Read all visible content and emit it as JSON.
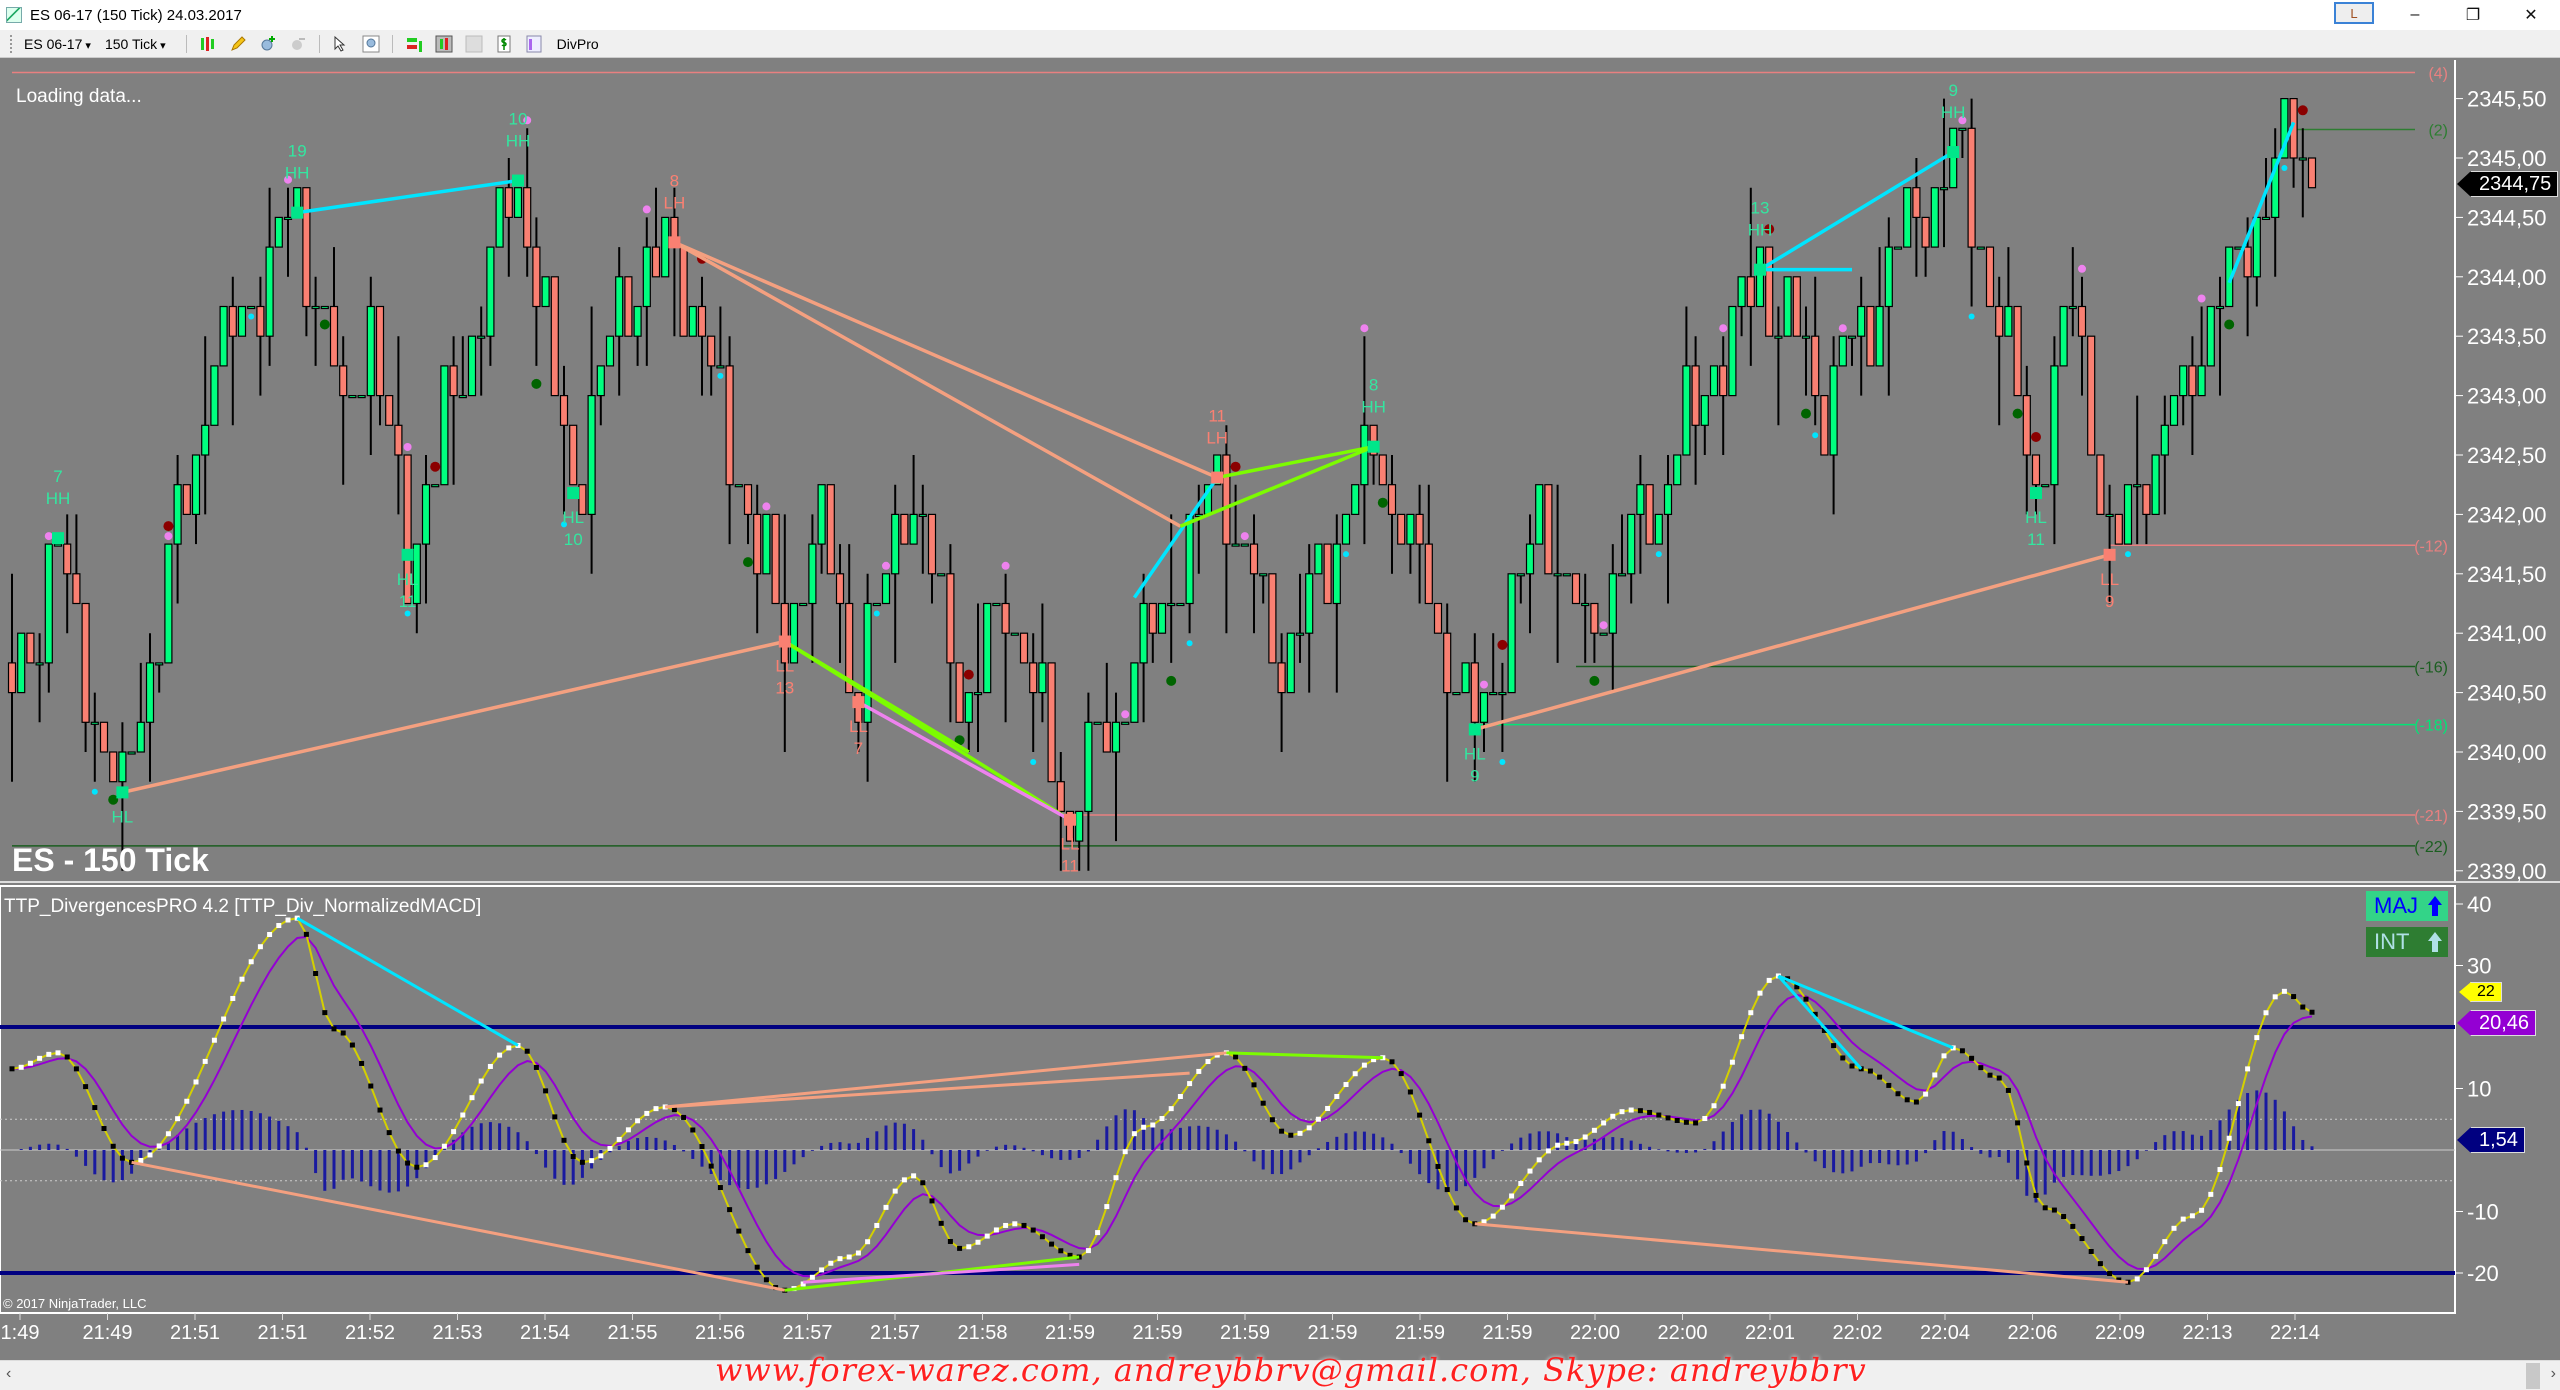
{
  "window": {
    "title": "ES 06-17 (150 Tick)  24.03.2017",
    "lbutton": "L",
    "minimize": "–",
    "restore": "❐",
    "close": "✕"
  },
  "toolbar": {
    "instrument": "ES 06-17",
    "interval": "150 Tick",
    "divpro": "DivPro",
    "icons": [
      "bars-type-icon",
      "pencil-draw-icon",
      "zoom-in-icon",
      "zoom-out-icon",
      "pointer-icon",
      "magnify-icon",
      "data-series-icon",
      "indicators-icon",
      "strategies-icon",
      "dollar-icon",
      "properties-icon"
    ]
  },
  "price_pane": {
    "status": "Loading data...",
    "instrument_label": "ES - 150 Tick",
    "last_price": "2344,75",
    "axis_ticks": [
      "2345,50",
      "2345,00",
      "2344,50",
      "2344,00",
      "2343,50",
      "2343,00",
      "2342,50",
      "2342,00",
      "2341,50",
      "2341,00",
      "2340,50",
      "2340,00",
      "2339,50",
      "2339,00"
    ],
    "colors": {
      "up": "#00ff7f",
      "down": "#fa8072",
      "bullish_label": "#33e6a0",
      "bearish_label": "#fa8072",
      "cyan_line": "#00e5ff",
      "green_line": "#7cfc00",
      "pink_line": "#ee82ee"
    },
    "swings": [
      {
        "bar": 0,
        "price": 2340.42
      },
      {
        "bar": 5,
        "price": 2341.8,
        "label": "HH",
        "num": "7",
        "side": "high"
      },
      {
        "bar": 8,
        "price": 2340.5
      },
      {
        "bar": 12,
        "price": 2339.66,
        "label": "HL",
        "num": "",
        "side": "low"
      },
      {
        "bar": 22,
        "price": 2343.3
      },
      {
        "bar": 31,
        "price": 2344.54,
        "label": "HH",
        "num": "19",
        "side": "high"
      },
      {
        "bar": 36,
        "price": 2342.8
      },
      {
        "bar": 39,
        "price": 2343.6
      },
      {
        "bar": 43,
        "price": 2341.66,
        "label": "HL",
        "num": "11",
        "side": "low"
      },
      {
        "bar": 55,
        "price": 2344.81,
        "label": "HH",
        "num": "10",
        "side": "high"
      },
      {
        "bar": 61,
        "price": 2342.18,
        "label": "HL",
        "num": "10",
        "side": "low"
      },
      {
        "bar": 66,
        "price": 2343.7
      },
      {
        "bar": 72,
        "price": 2344.29,
        "label": "LH",
        "num": "8",
        "side": "high"
      },
      {
        "bar": 84,
        "price": 2340.93,
        "label": "LL",
        "num": "13",
        "side": "low"
      },
      {
        "bar": 88,
        "price": 2342.0
      },
      {
        "bar": 92,
        "price": 2340.42,
        "label": "LL",
        "num": "7",
        "side": "low"
      },
      {
        "bar": 97,
        "price": 2342.27
      },
      {
        "bar": 104,
        "price": 2340.4
      },
      {
        "bar": 108,
        "price": 2341.4
      },
      {
        "bar": 115,
        "price": 2339.43,
        "label": "LL",
        "num": "11",
        "side": "low"
      },
      {
        "bar": 127,
        "price": 2341.6
      },
      {
        "bar": 131,
        "price": 2342.31,
        "label": "LH",
        "num": "11",
        "side": "high"
      },
      {
        "bar": 138,
        "price": 2340.8
      },
      {
        "bar": 148,
        "price": 2342.57,
        "label": "HH",
        "num": "8",
        "side": "high"
      },
      {
        "bar": 159,
        "price": 2340.19,
        "label": "HL",
        "num": "9",
        "side": "low"
      },
      {
        "bar": 166,
        "price": 2342.0
      },
      {
        "bar": 171,
        "price": 2341.0
      },
      {
        "bar": 178,
        "price": 2342.0
      },
      {
        "bar": 190,
        "price": 2344.06,
        "label": "HH",
        "num": "13",
        "side": "high"
      },
      {
        "bar": 197,
        "price": 2343.0
      },
      {
        "bar": 211,
        "price": 2345.05,
        "label": "HH",
        "num": "9",
        "side": "high"
      },
      {
        "bar": 215,
        "price": 2344.0
      },
      {
        "bar": 220,
        "price": 2342.18,
        "label": "HL",
        "num": "11",
        "side": "low"
      },
      {
        "bar": 224,
        "price": 2343.9
      },
      {
        "bar": 228,
        "price": 2341.66,
        "label": "LL",
        "num": "9",
        "side": "low"
      },
      {
        "bar": 238,
        "price": 2343.4
      },
      {
        "bar": 248,
        "price": 2345.3
      },
      {
        "bar": 250,
        "price": 2344.75
      }
    ],
    "levels": [
      {
        "label": "(4)",
        "price": 2345.72,
        "from_bar": 0,
        "color": "#e88080"
      },
      {
        "label": "(2)",
        "price": 2345.24,
        "from_bar": 248,
        "color": "#2e7d32"
      },
      {
        "label": "(-12)",
        "price": 2341.74,
        "from_bar": 228,
        "color": "#e88080"
      },
      {
        "label": "(-16)",
        "price": 2340.72,
        "from_bar": 170,
        "color": "#1b5e20"
      },
      {
        "label": "(-18)",
        "price": 2340.23,
        "from_bar": 159,
        "color": "#00e676"
      },
      {
        "label": "(-21)",
        "price": 2339.47,
        "from_bar": 115,
        "color": "#e88080"
      },
      {
        "label": "(-22)",
        "price": 2339.21,
        "from_bar": 0,
        "color": "#1b5e20"
      }
    ],
    "divergence_lines": [
      {
        "a": [
          31,
          2344.54
        ],
        "b": [
          55,
          2344.81
        ],
        "color": "#00e5ff"
      },
      {
        "a": [
          72,
          2344.29
        ],
        "b": [
          131,
          2342.31
        ],
        "color": "#f4a080"
      },
      {
        "a": [
          72,
          2344.29
        ],
        "b": [
          127,
          2341.9
        ],
        "color": "#f4a080"
      },
      {
        "a": [
          12,
          2339.66
        ],
        "b": [
          84,
          2340.93
        ],
        "color": "#f4a080"
      },
      {
        "a": [
          84,
          2340.93
        ],
        "b": [
          115,
          2339.43
        ],
        "color": "#7cfc00"
      },
      {
        "a": [
          84,
          2340.93
        ],
        "b": [
          104,
          2340.0
        ],
        "color": "#7cfc00"
      },
      {
        "a": [
          92,
          2340.42
        ],
        "b": [
          115,
          2339.43
        ],
        "color": "#ee82ee"
      },
      {
        "a": [
          122,
          2341.3
        ],
        "b": [
          131,
          2342.31
        ],
        "color": "#00e5ff"
      },
      {
        "a": [
          131,
          2342.31
        ],
        "b": [
          148,
          2342.57
        ],
        "color": "#7cfc00"
      },
      {
        "a": [
          127,
          2341.9
        ],
        "b": [
          148,
          2342.57
        ],
        "color": "#7cfc00"
      },
      {
        "a": [
          159,
          2340.19
        ],
        "b": [
          228,
          2341.66
        ],
        "color": "#f4a080"
      },
      {
        "a": [
          190,
          2344.06
        ],
        "b": [
          211,
          2345.05
        ],
        "color": "#00e5ff"
      },
      {
        "a": [
          190,
          2344.06
        ],
        "b": [
          200,
          2344.06
        ],
        "color": "#00e5ff"
      },
      {
        "a": [
          241,
          2343.95
        ],
        "b": [
          248,
          2345.3
        ],
        "color": "#00e5ff"
      }
    ]
  },
  "indicator_pane": {
    "title": "TTP_DivergencesPRO 4.2 [TTP_Div_NormalizedMACD]",
    "axis_ticks": [
      {
        "v": 40,
        "t": "40"
      },
      {
        "v": 30,
        "t": "30"
      },
      {
        "v": 10,
        "t": "10"
      },
      {
        "v": -10,
        "t": "-10"
      },
      {
        "v": -20,
        "t": "-20"
      }
    ],
    "range": [
      -24,
      42
    ],
    "bands": {
      "upper": 20,
      "lower": -20,
      "dotted": [
        5,
        -5
      ],
      "zero": 0
    },
    "maj_label": "MAJ",
    "int_label": "INT",
    "signal_value": "20,46",
    "yellow_value": "22",
    "hist_value": "1,54",
    "colors": {
      "macd": "#d4d000",
      "signal": "#9400d3",
      "hist": "#1a1aa0",
      "band": "#000080"
    },
    "macd_points": [
      [
        0,
        13.2
      ],
      [
        5,
        15.8
      ],
      [
        13,
        -2
      ],
      [
        31,
        37.7
      ],
      [
        35,
        19.7
      ],
      [
        44,
        -2.8
      ],
      [
        55,
        17
      ],
      [
        62,
        -2
      ],
      [
        71,
        7
      ],
      [
        84,
        -22.8
      ],
      [
        91,
        -17.4
      ],
      [
        98,
        -4.2
      ],
      [
        103,
        -16
      ],
      [
        109,
        -12
      ],
      [
        116,
        -17.4
      ],
      [
        123,
        3.7
      ],
      [
        132,
        15.8
      ],
      [
        139,
        2.4
      ],
      [
        149,
        15
      ],
      [
        159,
        -12
      ],
      [
        169,
        1.1
      ],
      [
        176,
        6.5
      ],
      [
        183,
        4.4
      ],
      [
        192,
        28.3
      ],
      [
        201,
        13.2
      ],
      [
        207,
        7.8
      ],
      [
        211,
        16.6
      ],
      [
        216,
        11.7
      ],
      [
        221,
        -9.4
      ],
      [
        230,
        -21.5
      ],
      [
        237,
        -10.7
      ],
      [
        247,
        25.8
      ],
      [
        250,
        22.4
      ]
    ],
    "divergence_lines": [
      {
        "a": [
          31,
          37.7
        ],
        "b": [
          55,
          17
        ],
        "color": "#00e5ff"
      },
      {
        "a": [
          13,
          -2
        ],
        "b": [
          84,
          -22.8
        ],
        "color": "#f4a080"
      },
      {
        "a": [
          71,
          7
        ],
        "b": [
          132,
          15.8
        ],
        "color": "#f4a080"
      },
      {
        "a": [
          71,
          7
        ],
        "b": [
          128,
          12.5
        ],
        "color": "#f4a080"
      },
      {
        "a": [
          132,
          15.8
        ],
        "b": [
          149,
          15
        ],
        "color": "#7cfc00"
      },
      {
        "a": [
          84,
          -22.8
        ],
        "b": [
          116,
          -17.4
        ],
        "color": "#7cfc00"
      },
      {
        "a": [
          86,
          -21.5
        ],
        "b": [
          116,
          -18.6
        ],
        "color": "#ee82ee"
      },
      {
        "a": [
          159,
          -12
        ],
        "b": [
          230,
          -21.5
        ],
        "color": "#f4a080"
      },
      {
        "a": [
          192,
          28.3
        ],
        "b": [
          211,
          16.6
        ],
        "color": "#00e5ff"
      },
      {
        "a": [
          192,
          28.3
        ],
        "b": [
          201,
          13.2
        ],
        "color": "#00e5ff"
      }
    ]
  },
  "time_axis": [
    "1:49",
    "21:49",
    "21:51",
    "21:51",
    "21:52",
    "21:53",
    "21:54",
    "21:55",
    "21:56",
    "21:57",
    "21:57",
    "21:58",
    "21:59",
    "21:59",
    "21:59",
    "21:59",
    "21:59",
    "21:59",
    "22:00",
    "22:00",
    "22:01",
    "22:02",
    "22:04",
    "22:06",
    "22:09",
    "22:13",
    "22:14"
  ],
  "copyright": "© 2017 NinjaTrader, LLC",
  "watermark": "www.forex-warez.com, andreybbrv@gmail.com, Skype: andreybbrv",
  "scroll": {
    "left": "‹",
    "right": "›"
  }
}
